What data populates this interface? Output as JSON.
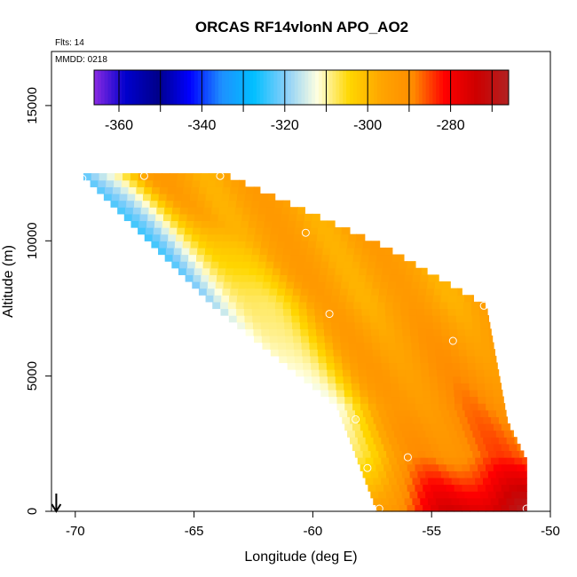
{
  "chart_data": {
    "type": "heatmap",
    "title": "ORCAS RF14vlonN APO_AO2",
    "notes": {
      "flights": "Flts: 14",
      "date": "MMDD: 0218"
    },
    "xlabel": "Longitude (deg E)",
    "ylabel": "Altitude (m)",
    "xlim": [
      -71,
      -50
    ],
    "ylim": [
      0,
      17000
    ],
    "x_ticks": [
      -70,
      -65,
      -60,
      -55,
      -50
    ],
    "x_tick_labels": [
      "-70",
      "-65",
      "-60",
      "-55",
      "-50"
    ],
    "y_ticks": [
      0,
      5000,
      10000,
      15000
    ],
    "y_tick_labels": [
      "0",
      "5000",
      "10000",
      "15000"
    ],
    "colorbar": {
      "range": [
        -366,
        -266
      ],
      "ticks": [
        -360,
        -340,
        -320,
        -300,
        -280
      ],
      "tick_labels": [
        "-360",
        "-340",
        "-320",
        "-300",
        "-280"
      ],
      "colors": [
        "#8a2be2",
        "#0000cd",
        "#00008b",
        "#0000ff",
        "#1e90ff",
        "#00bfff",
        "#87cefa",
        "#ffffe0",
        "#ffd700",
        "#ffa500",
        "#ff8c00",
        "#ff0000",
        "#cd0000",
        "#b22222"
      ]
    },
    "region": {
      "top_altitude": 12500,
      "left_edge": [
        [
          -69.8,
          12500
        ],
        [
          -64.2,
          7600
        ],
        [
          -59,
          3900
        ],
        [
          -57.3,
          0
        ]
      ],
      "right_edge": [
        [
          -63.8,
          12500
        ],
        [
          -57,
          9800
        ],
        [
          -52.7,
          7600
        ],
        [
          -51.8,
          3300
        ],
        [
          -51,
          1900
        ],
        [
          -51,
          0
        ]
      ]
    },
    "field": {
      "base": -296,
      "upper_west_value": -326,
      "lower_east_value": -283,
      "surface_value": -270
    },
    "observations": [
      {
        "lon": -69.7,
        "alt": 12300
      },
      {
        "lon": -67.1,
        "alt": 12400
      },
      {
        "lon": -63.9,
        "alt": 12400
      },
      {
        "lon": -60.3,
        "alt": 10300
      },
      {
        "lon": -59.3,
        "alt": 7300
      },
      {
        "lon": -54.1,
        "alt": 6300
      },
      {
        "lon": -52.8,
        "alt": 7600
      },
      {
        "lon": -58.2,
        "alt": 3400
      },
      {
        "lon": -51.6,
        "alt": 3400
      },
      {
        "lon": -57.7,
        "alt": 1600
      },
      {
        "lon": -56,
        "alt": 2000
      },
      {
        "lon": -57.2,
        "alt": 100
      },
      {
        "lon": -51,
        "alt": 100
      }
    ],
    "arrow": {
      "lon": -70.8,
      "alt": 0
    }
  }
}
